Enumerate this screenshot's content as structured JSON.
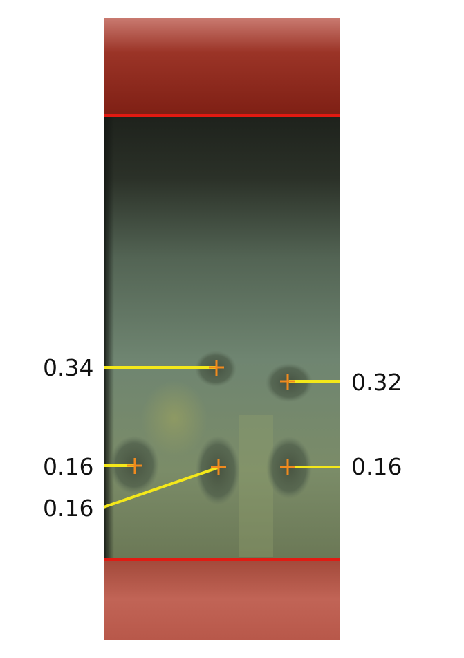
{
  "figure": {
    "colors": {
      "boundary_line": "#e11a12",
      "leader_line": "#f4e81a",
      "marker": "#f08a1e",
      "label_text": "#111111",
      "top_band": "#8e2418",
      "bottom_band": "#b54a3a",
      "plate_mid": "#7d8f74"
    },
    "annotations": [
      {
        "id": "spot-upper-left",
        "value": "0.34",
        "side": "left"
      },
      {
        "id": "spot-upper-right",
        "value": "0.32",
        "side": "right"
      },
      {
        "id": "spot-lower-left",
        "value": "0.16",
        "side": "left"
      },
      {
        "id": "spot-lower-middle",
        "value": "0.16",
        "side": "left"
      },
      {
        "id": "spot-lower-right",
        "value": "0.16",
        "side": "right"
      }
    ],
    "marker_icon": "plus-marker-icon"
  }
}
